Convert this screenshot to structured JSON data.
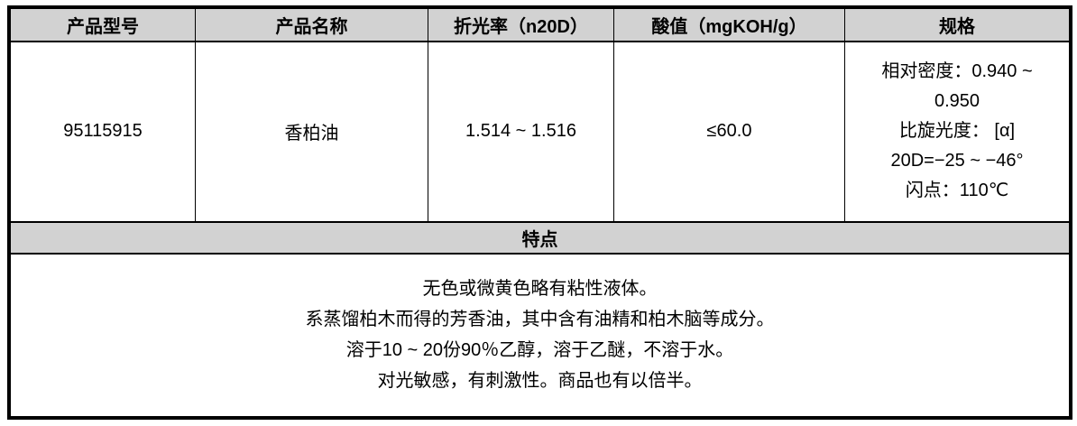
{
  "table": {
    "headers": [
      "产品型号",
      "产品名称",
      "折光率（n20D）",
      "酸值（mgKOH/g）",
      "规格"
    ],
    "row": {
      "model": "95115915",
      "name": "香柏油",
      "refractive_index": "1.514 ~ 1.516",
      "acid_value": "≤60.0",
      "spec_lines": [
        "相对密度：0.940 ~",
        "0.950",
        "比旋光度：  [α]",
        "20D=−25 ~ −46°",
        "闪点：110℃"
      ]
    },
    "features_header": "特点",
    "features_lines": [
      "无色或微黄色略有粘性液体。",
      "系蒸馏柏木而得的芳香油，其中含有油精和柏木脑等成分。",
      "溶于10 ~ 20份90％乙醇，溶于乙醚，不溶于水。",
      "对光敏感，有刺激性。商品也有以倍半。"
    ]
  },
  "colors": {
    "header_bg": "#d2d2d2",
    "border": "#000000",
    "text": "#000000",
    "background": "#ffffff"
  }
}
